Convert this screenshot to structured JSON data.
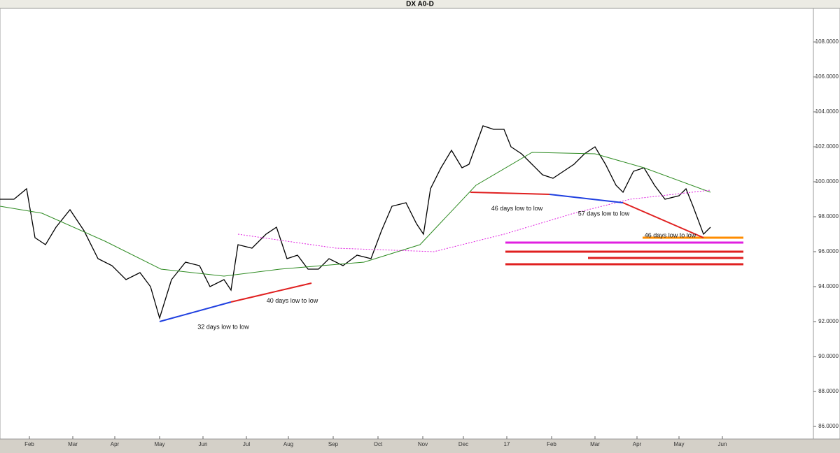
{
  "chart_data": {
    "type": "line",
    "title": "DX A0-D",
    "xlim": [
      0,
      580
    ],
    "ylim": [
      85.28,
      109.68
    ],
    "xticks": [
      {
        "value": 21,
        "label": "Feb"
      },
      {
        "value": 52,
        "label": "Mar"
      },
      {
        "value": 82,
        "label": "Apr"
      },
      {
        "value": 114,
        "label": "May"
      },
      {
        "value": 145,
        "label": "Jun"
      },
      {
        "value": 176,
        "label": "Jul"
      },
      {
        "value": 206,
        "label": "Aug"
      },
      {
        "value": 238,
        "label": "Sep"
      },
      {
        "value": 270,
        "label": "Oct"
      },
      {
        "value": 302,
        "label": "Nov"
      },
      {
        "value": 331,
        "label": "Dec"
      },
      {
        "value": 362,
        "label": "17"
      },
      {
        "value": 394,
        "label": "Feb"
      },
      {
        "value": 425,
        "label": "Mar"
      },
      {
        "value": 455,
        "label": "Apr"
      },
      {
        "value": 485,
        "label": "May"
      },
      {
        "value": 516,
        "label": "Jun"
      }
    ],
    "yticks": [
      {
        "value": 86,
        "label": "86.0000"
      },
      {
        "value": 88,
        "label": "88.0000"
      },
      {
        "value": 90,
        "label": "90.0000"
      },
      {
        "value": 92,
        "label": "92.0000"
      },
      {
        "value": 94,
        "label": "94.0000"
      },
      {
        "value": 96,
        "label": "96.0000"
      },
      {
        "value": 98,
        "label": "98.0000"
      },
      {
        "value": 100,
        "label": "100.0000"
      },
      {
        "value": 102,
        "label": "102.0000"
      },
      {
        "value": 104,
        "label": "104.0000"
      },
      {
        "value": 106,
        "label": "106.0000"
      },
      {
        "value": 108,
        "label": "108.0000"
      }
    ],
    "series": [
      {
        "color": "#000000",
        "x": [
          0,
          10,
          19,
          25,
          32.5,
          40,
          50,
          60,
          70,
          80,
          90,
          100,
          107.5,
          114,
          122.5,
          132.5,
          142.5,
          150,
          160,
          165,
          170,
          180,
          190,
          197.5,
          205,
          212.5,
          220,
          227.5,
          235,
          245,
          255,
          265,
          272.5,
          280,
          290,
          297.5,
          302.5,
          307.5,
          315,
          322.5,
          330,
          335,
          345,
          352.5,
          360,
          365,
          372.5,
          380,
          387.5,
          395,
          402.5,
          410,
          417.5,
          425,
          432.5,
          440,
          445,
          452.5,
          460,
          467.5,
          475,
          485,
          490,
          495,
          502.5,
          507.5
        ],
        "values": [
          99.0,
          99.0,
          99.6,
          96.8,
          96.4,
          97.4,
          98.4,
          97.2,
          95.6,
          95.2,
          94.4,
          94.8,
          94.0,
          92.2,
          94.4,
          95.4,
          95.2,
          94.0,
          94.4,
          93.8,
          96.4,
          96.2,
          97.0,
          97.4,
          95.6,
          95.8,
          95.0,
          95.0,
          95.6,
          95.2,
          95.8,
          95.6,
          97.2,
          98.6,
          98.8,
          97.6,
          97.0,
          99.6,
          100.8,
          101.8,
          100.8,
          101.0,
          103.2,
          103.0,
          103.0,
          102.0,
          101.6,
          101.0,
          100.4,
          100.2,
          100.6,
          101.0,
          101.6,
          102.0,
          101.0,
          99.8,
          99.4,
          100.6,
          100.8,
          99.8,
          99.0,
          99.2,
          99.6,
          98.6,
          97.0,
          97.4
        ]
      },
      {
        "color": "#2e8b22",
        "x": [
          0,
          30,
          75,
          115,
          160,
          200,
          260,
          300,
          340,
          380,
          425,
          460,
          507.5
        ],
        "values": [
          98.6,
          98.2,
          96.6,
          95.0,
          94.6,
          95.0,
          95.4,
          96.4,
          99.8,
          101.68,
          101.6,
          100.8,
          99.4
        ]
      },
      {
        "color": "#e020e0",
        "x": [
          170,
          240,
          310,
          360,
          410,
          450,
          507.5
        ],
        "values": [
          97.0,
          96.2,
          96.0,
          97.0,
          98.2,
          99.0,
          99.52
        ]
      }
    ],
    "trendlines": [
      {
        "color": "#2040e0",
        "x": [
          114,
          165
        ],
        "values": [
          92.0,
          93.12
        ]
      },
      {
        "color": "#e02020",
        "x": [
          165,
          222.5
        ],
        "values": [
          93.12,
          94.2
        ]
      },
      {
        "color": "#e02020",
        "x": [
          336,
          392.5
        ],
        "values": [
          99.4,
          99.28
        ]
      },
      {
        "color": "#2040e0",
        "x": [
          392.5,
          445
        ],
        "values": [
          99.28,
          98.8
        ]
      },
      {
        "color": "#e02020",
        "x": [
          445,
          502.5
        ],
        "values": [
          98.8,
          96.8
        ]
      }
    ],
    "annotations": [
      "32 days low to low",
      "40 days low to low",
      "46 days low to low",
      "57 days low to low",
      "46 days low to low"
    ],
    "levels": [
      {
        "color": "#ff8c00",
        "from": 459,
        "to": 531,
        "value": 96.8
      },
      {
        "color": "#e020e0",
        "from": 361,
        "to": 531,
        "value": 96.52
      },
      {
        "color": "#e02020",
        "from": 361,
        "to": 531,
        "value": 96.0
      },
      {
        "color": "#e02020",
        "from": 420,
        "to": 531,
        "value": 95.64
      },
      {
        "color": "#e02020",
        "from": 361,
        "to": 531,
        "value": 95.28
      }
    ]
  }
}
